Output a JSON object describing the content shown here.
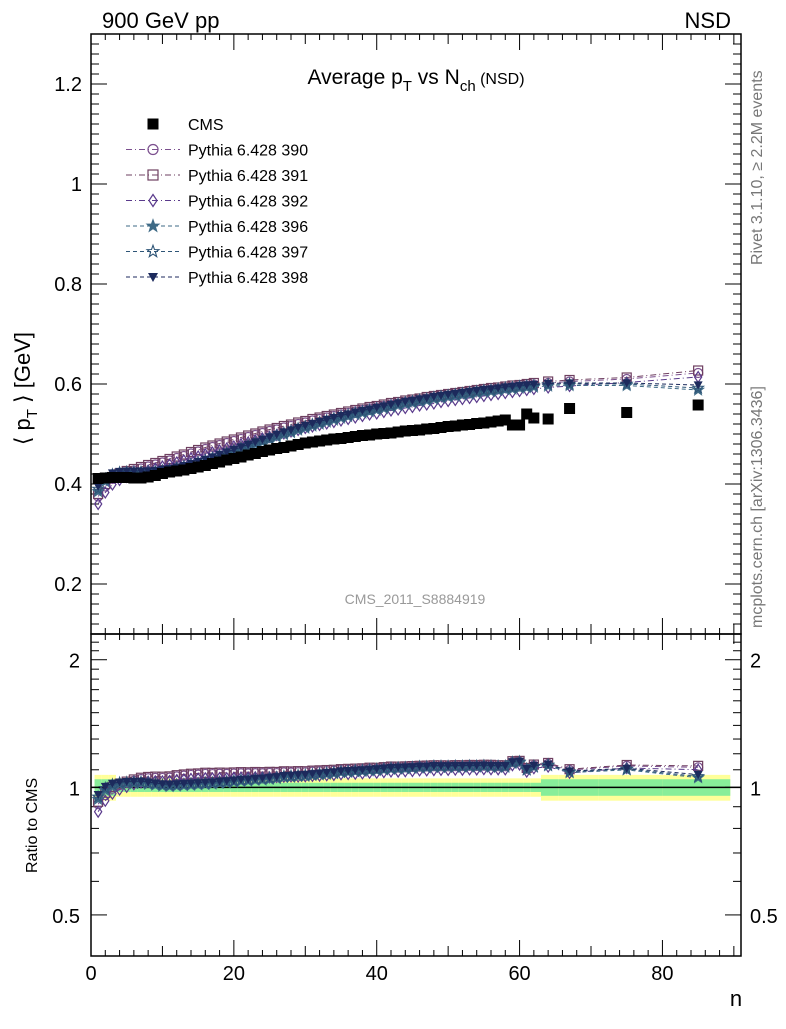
{
  "header": {
    "left": "900 GeV pp",
    "right": "NSD"
  },
  "side_labels": {
    "rivet": "Rivet 3.1.10, ≥ 2.2M events",
    "mcplots": "mcplots.cern.ch [arXiv:1306.3436]"
  },
  "main_panel": {
    "title_main": "Average p",
    "title_sub1": "T",
    "title_mid": " vs N",
    "title_sub2": "ch",
    "title_tail": " (NSD)",
    "ylabel_pre": "⟨ p",
    "ylabel_sub": "T",
    "ylabel_post": " ⟩ [GeV]",
    "analysis_tag": "CMS_2011_S8884919"
  },
  "ratio_panel": {
    "ylabel": "Ratio to CMS"
  },
  "x_axis_label": "n",
  "legend": [
    {
      "label": "CMS",
      "color": "#000000",
      "marker": "square-filled"
    },
    {
      "label": "Pythia 6.428 390",
      "color": "#7b4f8e",
      "marker": "circle-open"
    },
    {
      "label": "Pythia 6.428 391",
      "color": "#6e3f60",
      "marker": "square-open"
    },
    {
      "label": "Pythia 6.428 392",
      "color": "#5a3a8c",
      "marker": "diamond-open"
    },
    {
      "label": "Pythia 6.428 396",
      "color": "#3e6a86",
      "marker": "star-filled"
    },
    {
      "label": "Pythia 6.428 397",
      "color": "#2e5577",
      "marker": "star-open"
    },
    {
      "label": "Pythia 6.428 398",
      "color": "#1c2a5c",
      "marker": "triangle-down-filled"
    }
  ],
  "chart_data": [
    {
      "type": "scatter",
      "panel": "main",
      "xlim": [
        0,
        91
      ],
      "ylim": [
        0.1,
        1.3
      ],
      "yticks": [
        0.2,
        0.4,
        0.6,
        0.8,
        1.0,
        1.2
      ],
      "ytick_labels": [
        "0.2",
        "0.4",
        "0.6",
        "0.8",
        "1",
        "1.2"
      ],
      "x": [
        1,
        2,
        3,
        4,
        5,
        6,
        7,
        8,
        9,
        10,
        11,
        12,
        13,
        14,
        15,
        16,
        17,
        18,
        19,
        20,
        21,
        22,
        23,
        24,
        25,
        26,
        27,
        28,
        29,
        30,
        31,
        32,
        33,
        34,
        35,
        36,
        37,
        38,
        39,
        40,
        41,
        42,
        43,
        44,
        45,
        46,
        47,
        48,
        49,
        50,
        51,
        52,
        53,
        54,
        55,
        56,
        57,
        58,
        59,
        60,
        61,
        62,
        64,
        67,
        75,
        85
      ],
      "cms": [
        0.411,
        0.412,
        0.413,
        0.413,
        0.413,
        0.412,
        0.412,
        0.414,
        0.417,
        0.421,
        0.424,
        0.426,
        0.428,
        0.431,
        0.434,
        0.437,
        0.441,
        0.444,
        0.448,
        0.451,
        0.454,
        0.458,
        0.461,
        0.465,
        0.468,
        0.471,
        0.473,
        0.476,
        0.479,
        0.482,
        0.484,
        0.486,
        0.488,
        0.49,
        0.491,
        0.493,
        0.495,
        0.497,
        0.498,
        0.5,
        0.501,
        0.502,
        0.504,
        0.506,
        0.507,
        0.508,
        0.51,
        0.511,
        0.513,
        0.515,
        0.516,
        0.518,
        0.519,
        0.521,
        0.522,
        0.524,
        0.526,
        0.528,
        0.518,
        0.518,
        0.54,
        0.532,
        0.53,
        0.551,
        0.543,
        0.558
      ],
      "series": [
        {
          "name": "Pythia 6.428 390",
          "values": [
            0.375,
            0.395,
            0.41,
            0.418,
            0.423,
            0.427,
            0.431,
            0.435,
            0.439,
            0.443,
            0.447,
            0.452,
            0.456,
            0.461,
            0.465,
            0.47,
            0.474,
            0.478,
            0.482,
            0.486,
            0.49,
            0.494,
            0.498,
            0.502,
            0.506,
            0.509,
            0.513,
            0.516,
            0.52,
            0.523,
            0.527,
            0.53,
            0.533,
            0.536,
            0.539,
            0.542,
            0.545,
            0.548,
            0.551,
            0.553,
            0.556,
            0.559,
            0.561,
            0.564,
            0.566,
            0.568,
            0.571,
            0.573,
            0.575,
            0.577,
            0.579,
            0.581,
            0.583,
            0.585,
            0.587,
            0.589,
            0.59,
            0.592,
            0.594,
            0.595,
            0.597,
            0.599,
            0.602,
            0.605,
            0.61,
            0.622
          ]
        },
        {
          "name": "Pythia 6.428 391",
          "values": [
            0.38,
            0.4,
            0.414,
            0.421,
            0.426,
            0.43,
            0.434,
            0.438,
            0.442,
            0.446,
            0.45,
            0.455,
            0.459,
            0.464,
            0.468,
            0.473,
            0.477,
            0.481,
            0.485,
            0.489,
            0.493,
            0.497,
            0.501,
            0.505,
            0.509,
            0.512,
            0.516,
            0.519,
            0.523,
            0.526,
            0.53,
            0.533,
            0.536,
            0.539,
            0.542,
            0.545,
            0.548,
            0.551,
            0.554,
            0.556,
            0.559,
            0.562,
            0.564,
            0.567,
            0.569,
            0.571,
            0.574,
            0.576,
            0.578,
            0.58,
            0.582,
            0.584,
            0.586,
            0.588,
            0.59,
            0.592,
            0.593,
            0.595,
            0.597,
            0.598,
            0.6,
            0.602,
            0.605,
            0.608,
            0.613,
            0.627
          ]
        },
        {
          "name": "Pythia 6.428 392",
          "values": [
            0.36,
            0.383,
            0.399,
            0.408,
            0.414,
            0.419,
            0.423,
            0.427,
            0.431,
            0.435,
            0.439,
            0.443,
            0.447,
            0.451,
            0.455,
            0.459,
            0.463,
            0.467,
            0.471,
            0.475,
            0.479,
            0.483,
            0.487,
            0.491,
            0.494,
            0.498,
            0.501,
            0.505,
            0.508,
            0.512,
            0.515,
            0.518,
            0.521,
            0.524,
            0.527,
            0.53,
            0.533,
            0.536,
            0.539,
            0.541,
            0.544,
            0.547,
            0.549,
            0.552,
            0.554,
            0.557,
            0.559,
            0.561,
            0.564,
            0.566,
            0.568,
            0.57,
            0.572,
            0.574,
            0.576,
            0.578,
            0.58,
            0.582,
            0.584,
            0.586,
            0.588,
            0.59,
            0.593,
            0.596,
            0.603,
            0.614
          ]
        },
        {
          "name": "Pythia 6.428 396",
          "values": [
            0.385,
            0.405,
            0.415,
            0.42,
            0.421,
            0.421,
            0.421,
            0.421,
            0.422,
            0.424,
            0.426,
            0.429,
            0.432,
            0.436,
            0.44,
            0.444,
            0.449,
            0.454,
            0.459,
            0.464,
            0.469,
            0.474,
            0.479,
            0.484,
            0.489,
            0.494,
            0.499,
            0.503,
            0.508,
            0.512,
            0.516,
            0.52,
            0.524,
            0.528,
            0.532,
            0.535,
            0.539,
            0.542,
            0.545,
            0.548,
            0.551,
            0.554,
            0.557,
            0.56,
            0.562,
            0.565,
            0.567,
            0.57,
            0.572,
            0.574,
            0.576,
            0.578,
            0.58,
            0.582,
            0.584,
            0.585,
            0.587,
            0.589,
            0.59,
            0.592,
            0.593,
            0.594,
            0.596,
            0.597,
            0.597,
            0.588
          ]
        },
        {
          "name": "Pythia 6.428 397",
          "values": [
            0.39,
            0.41,
            0.419,
            0.423,
            0.424,
            0.424,
            0.424,
            0.424,
            0.425,
            0.427,
            0.429,
            0.432,
            0.435,
            0.439,
            0.443,
            0.447,
            0.452,
            0.457,
            0.462,
            0.467,
            0.472,
            0.477,
            0.482,
            0.487,
            0.492,
            0.497,
            0.502,
            0.506,
            0.511,
            0.515,
            0.519,
            0.523,
            0.527,
            0.531,
            0.535,
            0.538,
            0.542,
            0.545,
            0.548,
            0.551,
            0.554,
            0.557,
            0.56,
            0.563,
            0.565,
            0.568,
            0.57,
            0.573,
            0.575,
            0.577,
            0.579,
            0.581,
            0.583,
            0.585,
            0.587,
            0.588,
            0.59,
            0.592,
            0.593,
            0.595,
            0.596,
            0.597,
            0.599,
            0.6,
            0.6,
            0.592
          ]
        },
        {
          "name": "Pythia 6.428 398",
          "values": [
            0.395,
            0.414,
            0.422,
            0.425,
            0.426,
            0.426,
            0.426,
            0.426,
            0.427,
            0.429,
            0.431,
            0.434,
            0.437,
            0.441,
            0.445,
            0.449,
            0.454,
            0.459,
            0.464,
            0.469,
            0.474,
            0.479,
            0.484,
            0.489,
            0.494,
            0.499,
            0.504,
            0.508,
            0.513,
            0.517,
            0.521,
            0.525,
            0.529,
            0.533,
            0.537,
            0.54,
            0.544,
            0.547,
            0.55,
            0.553,
            0.556,
            0.559,
            0.562,
            0.565,
            0.567,
            0.57,
            0.572,
            0.575,
            0.577,
            0.579,
            0.581,
            0.583,
            0.585,
            0.587,
            0.589,
            0.59,
            0.592,
            0.594,
            0.595,
            0.597,
            0.598,
            0.599,
            0.601,
            0.602,
            0.602,
            0.598
          ]
        }
      ]
    },
    {
      "type": "scatter",
      "panel": "ratio",
      "xlim": [
        0,
        91
      ],
      "ylim": [
        0.4,
        2.3
      ],
      "yscale": "log",
      "xticks": [
        0,
        20,
        40,
        60,
        80
      ],
      "xtick_labels": [
        "0",
        "20",
        "40",
        "60",
        "80"
      ],
      "yticks": [
        0.5,
        1,
        2
      ],
      "ytick_labels": [
        "0.5",
        "1",
        "2"
      ],
      "reference": 1.0,
      "band_note": "CMS uncertainty bands (yellow: total, green: statistical)"
    }
  ]
}
